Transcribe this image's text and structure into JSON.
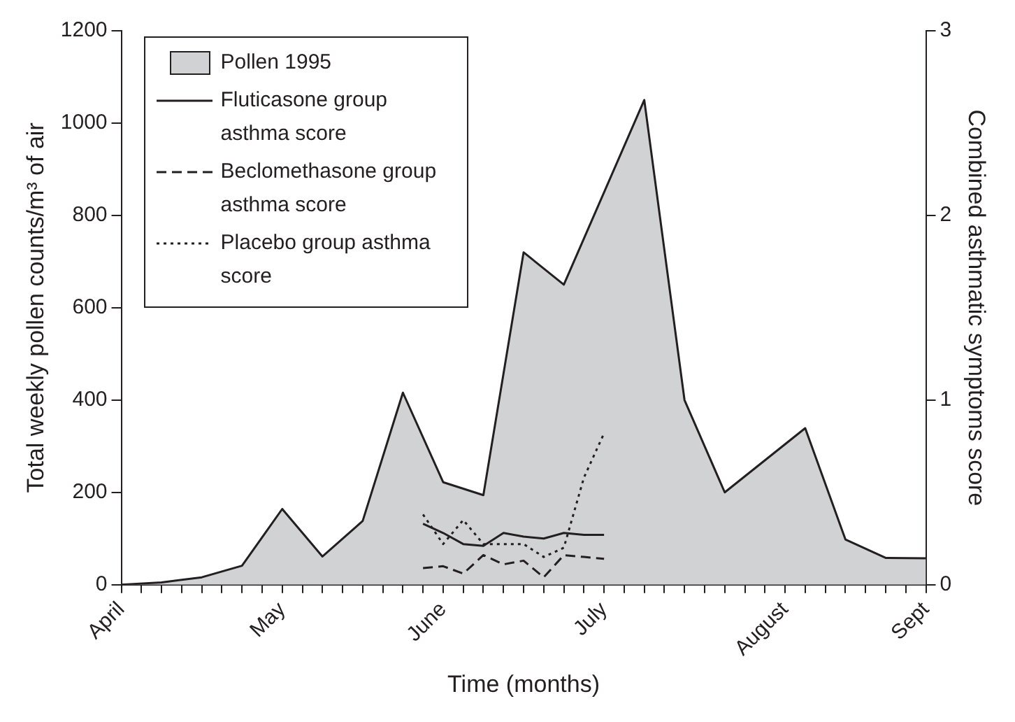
{
  "chart_data": {
    "type": "line",
    "xlabel": "Time (months)",
    "ylabel": "Total weekly pollen counts/m³ of air",
    "y2label": "Combined asthmatic symptoms score",
    "categories": [
      "April",
      null,
      null,
      null,
      null,
      null,
      null,
      null,
      "May",
      null,
      null,
      null,
      null,
      null,
      null,
      null,
      "June",
      null,
      null,
      null,
      null,
      null,
      null,
      null,
      "July",
      null,
      null,
      null,
      null,
      null,
      null,
      null,
      null,
      "August",
      null,
      null,
      null,
      null,
      null,
      null,
      "Sept"
    ],
    "ylim": [
      0,
      1200
    ],
    "yticks": [
      0,
      200,
      400,
      600,
      800,
      1000,
      1200
    ],
    "y2lim": [
      0,
      3
    ],
    "y2ticks": [
      0,
      1,
      2,
      3
    ],
    "grid": false,
    "legend": "top left",
    "marker": "none",
    "series": [
      {
        "name": "Pollen 1995",
        "type": "area",
        "color": "#d1d2d4",
        "line_style": "solid",
        "values": [
          0,
          null,
          5,
          null,
          16,
          null,
          41,
          null,
          164,
          null,
          61,
          null,
          138,
          null,
          416,
          null,
          222,
          null,
          194,
          null,
          720,
          null,
          650,
          null,
          null,
          null,
          1050,
          null,
          400,
          null,
          200,
          null,
          null,
          null,
          339,
          null,
          98,
          null,
          58,
          null,
          57
        ]
      },
      {
        "name": "Fluticasone group asthma score",
        "axis": "y2",
        "color": "#231f20",
        "line_style": "solid",
        "values": [
          null,
          null,
          null,
          null,
          null,
          null,
          null,
          null,
          null,
          null,
          null,
          null,
          null,
          null,
          null,
          0.33,
          0.28,
          0.22,
          0.21,
          0.28,
          0.26,
          0.25,
          0.28,
          0.27,
          0.27,
          null,
          null,
          null,
          null,
          null,
          null,
          null,
          null,
          null,
          null,
          null,
          null,
          null,
          null,
          null,
          null
        ]
      },
      {
        "name": "Beclomethasone group asthma score",
        "axis": "y2",
        "color": "#231f20",
        "line_style": "dashed",
        "values": [
          null,
          null,
          null,
          null,
          null,
          null,
          null,
          null,
          null,
          null,
          null,
          null,
          null,
          null,
          null,
          0.09,
          0.1,
          0.06,
          0.16,
          0.11,
          0.13,
          0.04,
          0.16,
          0.15,
          0.14,
          null,
          null,
          null,
          null,
          null,
          null,
          null,
          null,
          null,
          null,
          null,
          null,
          null,
          null,
          null,
          null
        ]
      },
      {
        "name": "Placebo group asthma score",
        "axis": "y2",
        "color": "#231f20",
        "line_style": "dotted",
        "values": [
          null,
          null,
          null,
          null,
          null,
          null,
          null,
          null,
          null,
          null,
          null,
          null,
          null,
          null,
          null,
          0.38,
          0.22,
          0.35,
          0.22,
          0.22,
          0.22,
          0.15,
          0.2,
          0.58,
          0.82,
          null,
          null,
          null,
          null,
          null,
          null,
          null,
          null,
          null,
          null,
          null,
          null,
          null,
          null,
          null,
          null
        ]
      }
    ]
  }
}
